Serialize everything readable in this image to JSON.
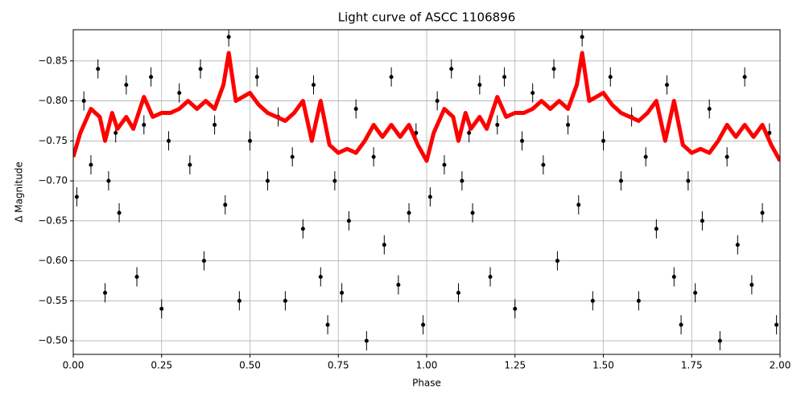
{
  "chart_data": {
    "type": "scatter",
    "title": "Light curve of ASCC 1106896",
    "x_label": "Phase",
    "y_label": "Δ Magnitude",
    "xlim": [
      0,
      2
    ],
    "ylim": [
      -0.483,
      -0.889
    ],
    "xticks": [
      {
        "value": 0,
        "label": "0.00"
      },
      {
        "value": 0.25,
        "label": "0.25"
      },
      {
        "value": 0.5,
        "label": "0.50"
      },
      {
        "value": 0.75,
        "label": "0.75"
      },
      {
        "value": 1,
        "label": "1.00"
      },
      {
        "value": 1.25,
        "label": "1.25"
      },
      {
        "value": 1.5,
        "label": "1.50"
      },
      {
        "value": 1.75,
        "label": "1.75"
      },
      {
        "value": 2,
        "label": "2.00"
      }
    ],
    "yticks": [
      {
        "value": -0.85,
        "label": "−0.85"
      },
      {
        "value": -0.8,
        "label": "−0.80"
      },
      {
        "value": -0.75,
        "label": "−0.75"
      },
      {
        "value": -0.7,
        "label": "−0.70"
      },
      {
        "value": -0.65,
        "label": "−0.65"
      },
      {
        "value": -0.6,
        "label": "−0.60"
      },
      {
        "value": -0.55,
        "label": "−0.55"
      },
      {
        "value": -0.5,
        "label": "−0.50"
      }
    ],
    "grid": true,
    "yerr": 0.012,
    "series": [
      {
        "type": "scatter",
        "color": "#000000",
        "x": [
          0.01,
          0.03,
          0.05,
          0.07,
          0.09,
          0.1,
          0.12,
          0.13,
          0.15,
          0.18,
          0.2,
          0.22,
          0.25,
          0.27,
          0.3,
          0.33,
          0.36,
          0.37,
          0.4,
          0.43,
          0.44,
          0.47,
          0.5,
          0.52,
          0.55,
          0.58,
          0.6,
          0.62,
          0.65,
          0.68,
          0.7,
          0.72,
          0.74,
          0.76,
          0.78,
          0.8,
          0.83,
          0.85,
          0.88,
          0.9,
          0.92,
          0.95,
          0.97,
          0.99,
          1.01,
          1.03,
          1.05,
          1.07,
          1.09,
          1.1,
          1.12,
          1.13,
          1.15,
          1.18,
          1.2,
          1.22,
          1.25,
          1.27,
          1.3,
          1.33,
          1.36,
          1.37,
          1.4,
          1.43,
          1.44,
          1.47,
          1.5,
          1.52,
          1.55,
          1.58,
          1.6,
          1.62,
          1.65,
          1.68,
          1.7,
          1.72,
          1.74,
          1.76,
          1.78,
          1.8,
          1.83,
          1.85,
          1.88,
          1.9,
          1.92,
          1.95,
          1.97,
          1.99
        ],
        "values": [
          -0.68,
          -0.8,
          -0.72,
          -0.84,
          -0.56,
          -0.7,
          -0.76,
          -0.66,
          -0.82,
          -0.58,
          -0.77,
          -0.83,
          -0.54,
          -0.75,
          -0.81,
          -0.72,
          -0.84,
          -0.6,
          -0.77,
          -0.67,
          -0.88,
          -0.55,
          -0.75,
          -0.83,
          -0.7,
          -0.78,
          -0.55,
          -0.73,
          -0.64,
          -0.82,
          -0.58,
          -0.52,
          -0.7,
          -0.56,
          -0.65,
          -0.79,
          -0.5,
          -0.73,
          -0.62,
          -0.83,
          -0.57,
          -0.66,
          -0.76,
          -0.52,
          -0.68,
          -0.8,
          -0.72,
          -0.84,
          -0.56,
          -0.7,
          -0.76,
          -0.66,
          -0.82,
          -0.58,
          -0.77,
          -0.83,
          -0.54,
          -0.75,
          -0.81,
          -0.72,
          -0.84,
          -0.6,
          -0.77,
          -0.67,
          -0.88,
          -0.55,
          -0.75,
          -0.83,
          -0.7,
          -0.78,
          -0.55,
          -0.73,
          -0.64,
          -0.82,
          -0.58,
          -0.52,
          -0.7,
          -0.56,
          -0.65,
          -0.79,
          -0.5,
          -0.73,
          -0.62,
          -0.83,
          -0.57,
          -0.66,
          -0.76,
          -0.52
        ]
      },
      {
        "type": "line",
        "color": "#ff0000",
        "x": [
          0,
          0.02,
          0.05,
          0.075,
          0.09,
          0.11,
          0.125,
          0.15,
          0.17,
          0.2,
          0.225,
          0.25,
          0.275,
          0.3,
          0.325,
          0.35,
          0.375,
          0.4,
          0.425,
          0.44,
          0.46,
          0.5,
          0.525,
          0.55,
          0.575,
          0.6,
          0.625,
          0.65,
          0.675,
          0.7,
          0.725,
          0.75,
          0.775,
          0.8,
          0.825,
          0.85,
          0.875,
          0.9,
          0.925,
          0.95,
          0.975,
          1,
          1.02,
          1.05,
          1.075,
          1.09,
          1.11,
          1.125,
          1.15,
          1.17,
          1.2,
          1.225,
          1.25,
          1.275,
          1.3,
          1.325,
          1.35,
          1.375,
          1.4,
          1.425,
          1.44,
          1.46,
          1.5,
          1.525,
          1.55,
          1.575,
          1.6,
          1.625,
          1.65,
          1.675,
          1.7,
          1.725,
          1.75,
          1.775,
          1.8,
          1.825,
          1.85,
          1.875,
          1.9,
          1.925,
          1.95,
          1.975,
          2
        ],
        "values": [
          -0.73,
          -0.76,
          -0.79,
          -0.78,
          -0.75,
          -0.785,
          -0.765,
          -0.78,
          -0.765,
          -0.805,
          -0.78,
          -0.785,
          -0.785,
          -0.79,
          -0.8,
          -0.79,
          -0.8,
          -0.79,
          -0.82,
          -0.86,
          -0.8,
          -0.81,
          -0.795,
          -0.785,
          -0.78,
          -0.775,
          -0.785,
          -0.8,
          -0.75,
          -0.8,
          -0.745,
          -0.735,
          -0.74,
          -0.735,
          -0.75,
          -0.77,
          -0.755,
          -0.77,
          -0.755,
          -0.77,
          -0.745,
          -0.725,
          -0.76,
          -0.79,
          -0.78,
          -0.75,
          -0.785,
          -0.765,
          -0.78,
          -0.765,
          -0.805,
          -0.78,
          -0.785,
          -0.785,
          -0.79,
          -0.8,
          -0.79,
          -0.8,
          -0.79,
          -0.82,
          -0.86,
          -0.8,
          -0.81,
          -0.795,
          -0.785,
          -0.78,
          -0.775,
          -0.785,
          -0.8,
          -0.75,
          -0.8,
          -0.745,
          -0.735,
          -0.74,
          -0.735,
          -0.75,
          -0.77,
          -0.755,
          -0.77,
          -0.755,
          -0.77,
          -0.745,
          -0.725
        ]
      }
    ]
  }
}
